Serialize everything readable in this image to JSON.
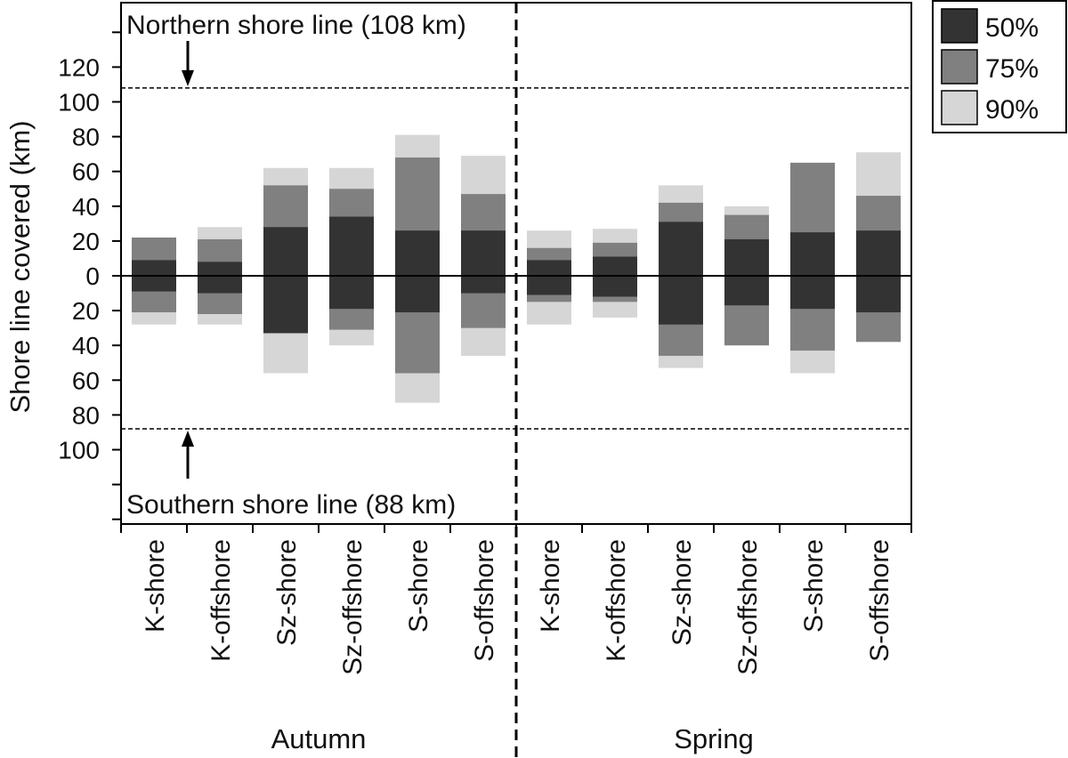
{
  "chart_data": {
    "type": "bar",
    "ylabel": "Shore line covered (km)",
    "ylim_north": [
      0,
      140
    ],
    "ylim_south": [
      0,
      140
    ],
    "yticks_north": [
      0,
      20,
      40,
      60,
      80,
      100,
      120
    ],
    "yticks_south": [
      20,
      40,
      60,
      80,
      100
    ],
    "categories": [
      "K-shore",
      "K-offshore",
      "Sz-shore",
      "Sz-offshore",
      "S-shore",
      "S-offshore",
      "K-shore",
      "K-offshore",
      "Sz-shore",
      "Sz-offshore",
      "S-shore",
      "S-offshore"
    ],
    "groups": [
      {
        "name": "Autumn",
        "start": 0,
        "end": 5
      },
      {
        "name": "Spring",
        "start": 6,
        "end": 11
      }
    ],
    "legend": {
      "position": "top-right",
      "entries": [
        "50%",
        "75%",
        "90%"
      ]
    },
    "colors": {
      "50%": "#333333",
      "75%": "#808080",
      "90%": "#d6d6d6"
    },
    "series_north": [
      {
        "name": "50%",
        "values": [
          9,
          8,
          28,
          34,
          26,
          26,
          9,
          11,
          31,
          21,
          25,
          26
        ]
      },
      {
        "name": "75%",
        "values": [
          22,
          21,
          52,
          50,
          68,
          47,
          16,
          19,
          42,
          35,
          65,
          46
        ]
      },
      {
        "name": "90%",
        "values": [
          22,
          28,
          62,
          62,
          81,
          69,
          26,
          27,
          52,
          40,
          65,
          71
        ]
      }
    ],
    "series_south": [
      {
        "name": "50%",
        "values": [
          9,
          10,
          33,
          19,
          21,
          10,
          11,
          12,
          28,
          17,
          19,
          21
        ]
      },
      {
        "name": "75%",
        "values": [
          21,
          22,
          33,
          31,
          56,
          30,
          15,
          15,
          46,
          40,
          43,
          38
        ]
      },
      {
        "name": "90%",
        "values": [
          28,
          28,
          56,
          40,
          73,
          46,
          28,
          24,
          53,
          40,
          56,
          38
        ]
      }
    ],
    "reference_lines": [
      {
        "label": "Northern shore line (108 km)",
        "side": "north",
        "value": 108
      },
      {
        "label": "Southern shore line (88 km)",
        "side": "south",
        "value": 88
      }
    ]
  }
}
